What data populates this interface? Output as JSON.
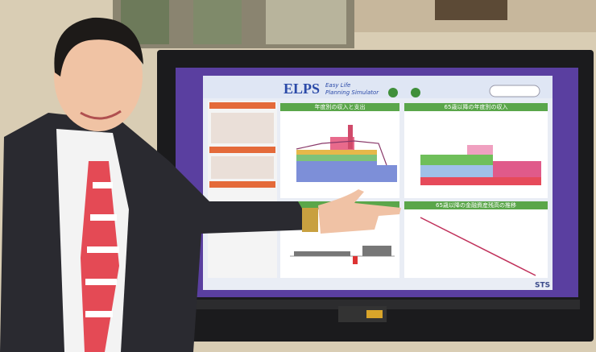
{
  "screen": {
    "logo": "ELPS",
    "logo_line1": "Easy Life",
    "logo_line2": "Planning Simulator",
    "panels": [
      "年度別の収入と支出",
      "65歳以降の年度別の収入",
      "65歳以降の金融資産残高の推移"
    ],
    "brand": "STS"
  }
}
